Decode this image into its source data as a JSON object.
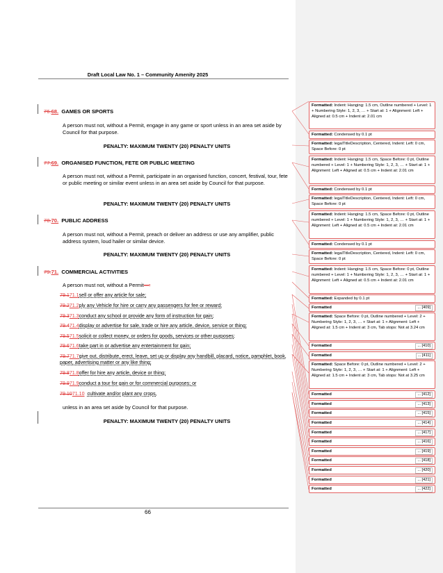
{
  "header": {
    "title": "Draft Local Law No. 1 – Community Amenity 2025"
  },
  "footer": {
    "page_number": "66"
  },
  "sections": [
    {
      "old_num": "76.",
      "new_num": "68.",
      "title": "GAMES OR SPORTS",
      "body": "A person must not, without a Permit, engage in any game or sport unless in an area set aside by Council for that purpose.",
      "penalty": "PENALTY: MAXIMUM TWENTY (20) PENALTY UNITS"
    },
    {
      "old_num": "77.",
      "new_num": "69.",
      "title": "ORGANISED FUNCTION, FETE OR PUBLIC MEETING",
      "body": "A person must not, without a Permit, participate in an organised function, concert, festival, tour, fete or public meeting or similar event unless in an area set aside by Council for that purpose.",
      "penalty": "PENALTY: MAXIMUM TWENTY (20) PENALTY UNITS"
    },
    {
      "old_num": "78.",
      "new_num": "70.",
      "title": "PUBLIC ADDRESS",
      "body": "A person must not, without a Permit, preach or deliver an address or use any amplifier, public address system, loud hailer or similar device.",
      "penalty": "PENALTY: MAXIMUM TWENTY (20) PENALTY UNITS"
    },
    {
      "old_num": "79.",
      "new_num": "71.",
      "title": "COMMERCIAL ACTIVITIES",
      "intro": "A person must not, without a Permit",
      "intro_deleted": "—:",
      "closing": "unless in an area set aside by Council for that purpose.",
      "penalty": "PENALTY: MAXIMUM TWENTY (20) PENALTY UNITS"
    }
  ],
  "items": [
    {
      "old_num": "79.1",
      "new_num": "71.1",
      "text": "sell or offer any article for sale;"
    },
    {
      "old_num": "79.2",
      "new_num": "71.2",
      "text": "ply any Vehicle for hire or carry any passengers for fee or reward;"
    },
    {
      "old_num": "79.3",
      "new_num": "71.3",
      "text": "conduct any school or provide any form of instruction for gain;"
    },
    {
      "old_num": "79.4",
      "new_num": "71.4",
      "text": "display or advertise for sale, trade or hire any article, device, service or thing;"
    },
    {
      "old_num": "79.5",
      "new_num": "71.5",
      "text": "solicit or collect money, or orders for goods, services or other purposes;"
    },
    {
      "old_num": "79.6",
      "new_num": "71.6",
      "text": "take part in or advertise any entertainment for gain;"
    },
    {
      "old_num": "79.7",
      "new_num": "71.7",
      "text": "give out, distribute, erect, leave, set up or display any handbill, placard, notice, pamphlet, book, paper, advertising matter or any like thing;"
    },
    {
      "old_num": "79.8",
      "new_num": "71.8",
      "text": "offer for hire any article, device or thing;"
    },
    {
      "old_num": "79.9",
      "new_num": "71.9",
      "text": "conduct a tour for gain or for commercial purposes; or"
    },
    {
      "old_num": "79.10",
      "new_num": "71.10",
      "text": "cultivate and/or plant any crops,"
    }
  ],
  "comments": [
    {
      "label": "Formatted:",
      "text": "Indent: Hanging:  1.5 cm, Outline numbered + Level: 1 + Numbering Style: 1, 2, 3, … + Start at: 1 + Alignment: Left + Aligned at:  0.5 cm + Indent at:  2.01 cm",
      "ref": ""
    },
    {
      "label": "Formatted:",
      "text": "Condensed by  0.1 pt",
      "ref": ""
    },
    {
      "label": "Formatted:",
      "text": "legalTitleDescription, Centered, Indent: Left:  0 cm, Space Before:  0 pt",
      "ref": ""
    },
    {
      "label": "Formatted:",
      "text": "Indent: Hanging:  1.5 cm, Space Before:  0 pt, Outline numbered + Level: 1 + Numbering Style: 1, 2, 3, … + Start at: 1 + Alignment: Left + Aligned at:  0.5 cm + Indent at:  2.01 cm",
      "ref": ""
    },
    {
      "label": "Formatted:",
      "text": "Condensed by  0.1 pt",
      "ref": ""
    },
    {
      "label": "Formatted:",
      "text": "legalTitleDescription, Centered, Indent: Left:  0 cm, Space Before:  0 pt",
      "ref": ""
    },
    {
      "label": "Formatted:",
      "text": "Indent: Hanging:  1.5 cm, Space Before:  0 pt, Outline numbered + Level: 1 + Numbering Style: 1, 2, 3, … + Start at: 1 + Alignment: Left + Aligned at:  0.5 cm + Indent at:  2.01 cm",
      "ref": ""
    },
    {
      "label": "Formatted:",
      "text": "Condensed by  0.1 pt",
      "ref": ""
    },
    {
      "label": "Formatted:",
      "text": "legalTitleDescription, Centered, Indent: Left:  0 cm, Space Before:  0 pt",
      "ref": ""
    },
    {
      "label": "Formatted:",
      "text": "Indent: Hanging:  1.5 cm, Space Before:  0 pt, Outline numbered + Level: 1 + Numbering Style: 1, 2, 3, … + Start at: 1 + Alignment: Left + Aligned at:  0.5 cm + Indent at:  2.01 cm",
      "ref": ""
    },
    {
      "label": "Formatted:",
      "text": "Expanded by  0.1 pt",
      "ref": ""
    },
    {
      "label": "Formatted",
      "text": "",
      "ref": "... [409]"
    },
    {
      "label": "Formatted:",
      "text": "Space Before:  0 pt, Outline numbered + Level: 2 + Numbering Style: 1, 2, 3, … + Start at: 1 + Alignment: Left + Aligned at:  1.5 cm + Indent at:  3 cm, Tab stops: Not at  3.24 cm",
      "ref": ""
    },
    {
      "label": "Formatted",
      "text": "",
      "ref": "... [410]"
    },
    {
      "label": "Formatted",
      "text": "",
      "ref": "... [411]"
    },
    {
      "label": "Formatted:",
      "text": "Space Before:  0 pt, Outline numbered + Level: 2 + Numbering Style: 1, 2, 3, … + Start at: 1 + Alignment: Left + Aligned at:  1.5 cm + Indent at:  3 cm, Tab stops: Not at  3.25 cm",
      "ref": ""
    },
    {
      "label": "Formatted",
      "text": "",
      "ref": "... [412]"
    },
    {
      "label": "Formatted",
      "text": "",
      "ref": "... [413]"
    },
    {
      "label": "Formatted",
      "text": "",
      "ref": "... [415]"
    },
    {
      "label": "Formatted",
      "text": "",
      "ref": "... [414]"
    },
    {
      "label": "Formatted",
      "text": "",
      "ref": "... [417]"
    },
    {
      "label": "Formatted",
      "text": "",
      "ref": "... [416]"
    },
    {
      "label": "Formatted",
      "text": "",
      "ref": "... [419]"
    },
    {
      "label": "Formatted",
      "text": "",
      "ref": "... [418]"
    },
    {
      "label": "Formatted",
      "text": "",
      "ref": "... [420]"
    },
    {
      "label": "Formatted",
      "text": "",
      "ref": "... [421]"
    },
    {
      "label": "Formatted",
      "text": "",
      "ref": "... [422]"
    }
  ],
  "colors": {
    "markup": "#e03c3c",
    "balloon_border": "#e46060",
    "margin_pane": "#f2f2f2"
  }
}
